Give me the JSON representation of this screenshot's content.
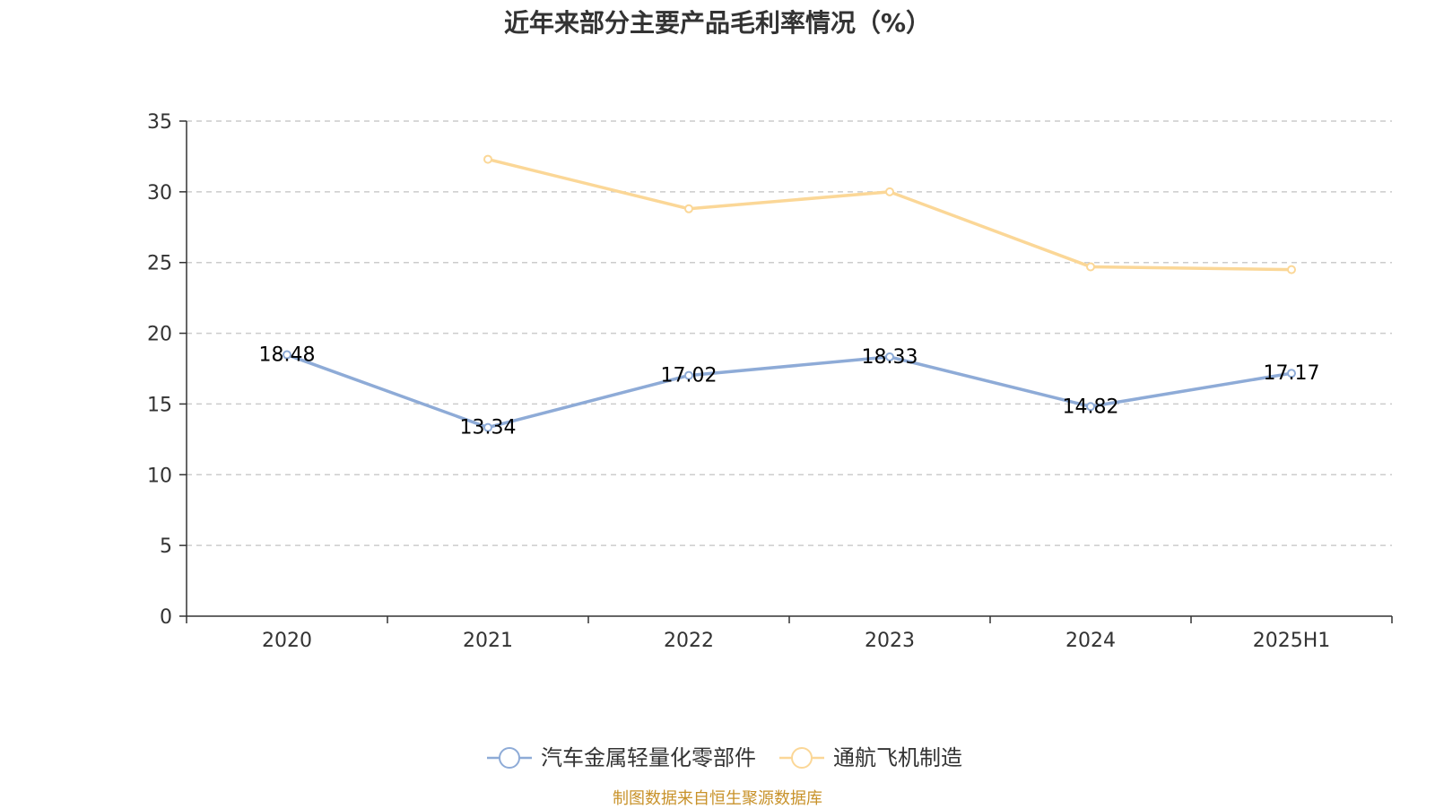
{
  "chart_data": {
    "type": "line",
    "title": "近年来部分主要产品毛利率情况（%）",
    "categories": [
      "2020",
      "2021",
      "2022",
      "2023",
      "2024",
      "2025H1"
    ],
    "ylim": [
      0,
      35
    ],
    "yticks": [
      0,
      5,
      10,
      15,
      20,
      25,
      30,
      35
    ],
    "grid": true,
    "legend_position": "bottom-center",
    "series": [
      {
        "name": "汽车金属轻量化零部件",
        "color": "#8eabd7",
        "values": [
          18.48,
          13.34,
          17.02,
          18.33,
          14.82,
          17.17
        ],
        "labels": [
          "18.48",
          "13.34",
          "17.02",
          "18.33",
          "14.82",
          "17.17"
        ]
      },
      {
        "name": "通航飞机制造",
        "color": "#fbd797",
        "values": [
          null,
          32.3,
          28.8,
          30.0,
          24.7,
          24.5
        ],
        "labels": []
      }
    ]
  },
  "source_note": "制图数据来自恒生聚源数据库"
}
